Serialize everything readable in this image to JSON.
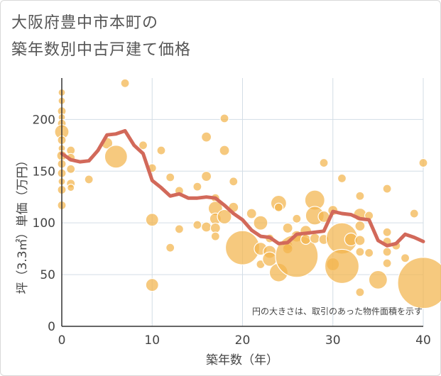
{
  "title_line1": "大阪府豊中市本町の",
  "title_line2": "築年数別中古戸建て価格",
  "colors": {
    "bubble": "#f3b44c",
    "bubble_stroke": "#ffffff",
    "line": "#d2695a",
    "grid": "#d3dde6",
    "axis": "#333333"
  },
  "chart_data": {
    "type": "scatter",
    "title": "大阪府豊中市本町の築年数別中古戸建て価格",
    "xlabel": "築年数（年）",
    "ylabel": "坪（3.3㎡）単価（万円）",
    "xlim": [
      0,
      40
    ],
    "ylim": [
      0,
      240
    ],
    "xticks": [
      0,
      10,
      20,
      30,
      40
    ],
    "yticks": [
      0,
      50,
      100,
      150,
      200
    ],
    "grid": true,
    "annotation": "円の大きさは、取引のあった物件面積を示す",
    "bubbles": [
      {
        "x": 0,
        "y": 226,
        "s": 5
      },
      {
        "x": 0,
        "y": 218,
        "s": 5
      },
      {
        "x": 0,
        "y": 208,
        "s": 6
      },
      {
        "x": 0,
        "y": 202,
        "s": 5
      },
      {
        "x": 0,
        "y": 196,
        "s": 6
      },
      {
        "x": 0,
        "y": 188,
        "s": 10
      },
      {
        "x": 0,
        "y": 180,
        "s": 6
      },
      {
        "x": 0,
        "y": 172,
        "s": 5
      },
      {
        "x": 0,
        "y": 165,
        "s": 7
      },
      {
        "x": 0,
        "y": 157,
        "s": 6
      },
      {
        "x": 0,
        "y": 148,
        "s": 6
      },
      {
        "x": 0,
        "y": 140,
        "s": 5
      },
      {
        "x": 0,
        "y": 132,
        "s": 6
      },
      {
        "x": 0,
        "y": 117,
        "s": 6
      },
      {
        "x": 1,
        "y": 170,
        "s": 6
      },
      {
        "x": 1,
        "y": 163,
        "s": 6
      },
      {
        "x": 1,
        "y": 152,
        "s": 6
      },
      {
        "x": 1,
        "y": 138,
        "s": 6
      },
      {
        "x": 1,
        "y": 134,
        "s": 5
      },
      {
        "x": 3,
        "y": 142,
        "s": 6
      },
      {
        "x": 5,
        "y": 177,
        "s": 8
      },
      {
        "x": 6,
        "y": 164,
        "s": 16
      },
      {
        "x": 7,
        "y": 235,
        "s": 6
      },
      {
        "x": 9,
        "y": 175,
        "s": 6
      },
      {
        "x": 10,
        "y": 153,
        "s": 6
      },
      {
        "x": 10,
        "y": 103,
        "s": 9
      },
      {
        "x": 10,
        "y": 40,
        "s": 9
      },
      {
        "x": 11,
        "y": 170,
        "s": 6
      },
      {
        "x": 12,
        "y": 144,
        "s": 6
      },
      {
        "x": 12,
        "y": 76,
        "s": 6
      },
      {
        "x": 13,
        "y": 131,
        "s": 6
      },
      {
        "x": 13,
        "y": 94,
        "s": 6
      },
      {
        "x": 15,
        "y": 135,
        "s": 6
      },
      {
        "x": 15,
        "y": 98,
        "s": 6
      },
      {
        "x": 16,
        "y": 183,
        "s": 7
      },
      {
        "x": 16,
        "y": 145,
        "s": 7
      },
      {
        "x": 16,
        "y": 96,
        "s": 7
      },
      {
        "x": 17,
        "y": 124,
        "s": 6
      },
      {
        "x": 17,
        "y": 114,
        "s": 10
      },
      {
        "x": 17,
        "y": 104,
        "s": 8
      },
      {
        "x": 17,
        "y": 95,
        "s": 7
      },
      {
        "x": 17,
        "y": 87,
        "s": 6
      },
      {
        "x": 18,
        "y": 201,
        "s": 6
      },
      {
        "x": 18,
        "y": 170,
        "s": 7
      },
      {
        "x": 18,
        "y": 106,
        "s": 10
      },
      {
        "x": 19,
        "y": 140,
        "s": 6
      },
      {
        "x": 19,
        "y": 115,
        "s": 7
      },
      {
        "x": 20,
        "y": 76,
        "s": 24
      },
      {
        "x": 21,
        "y": 109,
        "s": 7
      },
      {
        "x": 22,
        "y": 100,
        "s": 10
      },
      {
        "x": 22,
        "y": 75,
        "s": 9
      },
      {
        "x": 22,
        "y": 60,
        "s": 6
      },
      {
        "x": 23,
        "y": 85,
        "s": 6
      },
      {
        "x": 23,
        "y": 72,
        "s": 9
      },
      {
        "x": 23,
        "y": 65,
        "s": 10
      },
      {
        "x": 24,
        "y": 119,
        "s": 11
      },
      {
        "x": 24,
        "y": 115,
        "s": 6
      },
      {
        "x": 24,
        "y": 52,
        "s": 13
      },
      {
        "x": 25,
        "y": 95,
        "s": 7
      },
      {
        "x": 25,
        "y": 78,
        "s": 7
      },
      {
        "x": 25,
        "y": 75,
        "s": 7
      },
      {
        "x": 26,
        "y": 104,
        "s": 6
      },
      {
        "x": 26,
        "y": 87,
        "s": 8
      },
      {
        "x": 26,
        "y": 68,
        "s": 30
      },
      {
        "x": 27,
        "y": 92,
        "s": 8
      },
      {
        "x": 27,
        "y": 84,
        "s": 7
      },
      {
        "x": 28,
        "y": 122,
        "s": 14
      },
      {
        "x": 28,
        "y": 107,
        "s": 13
      },
      {
        "x": 28,
        "y": 85,
        "s": 7
      },
      {
        "x": 29,
        "y": 158,
        "s": 6
      },
      {
        "x": 29,
        "y": 106,
        "s": 8
      },
      {
        "x": 29,
        "y": 84,
        "s": 7
      },
      {
        "x": 30,
        "y": 112,
        "s": 7
      },
      {
        "x": 30,
        "y": 60,
        "s": 9
      },
      {
        "x": 31,
        "y": 143,
        "s": 6
      },
      {
        "x": 31,
        "y": 85,
        "s": 22
      },
      {
        "x": 31,
        "y": 58,
        "s": 24
      },
      {
        "x": 32,
        "y": 84,
        "s": 9
      },
      {
        "x": 33,
        "y": 126,
        "s": 6
      },
      {
        "x": 33,
        "y": 108,
        "s": 9
      },
      {
        "x": 33,
        "y": 97,
        "s": 7
      },
      {
        "x": 33,
        "y": 83,
        "s": 7
      },
      {
        "x": 33,
        "y": 72,
        "s": 6
      },
      {
        "x": 33,
        "y": 33,
        "s": 6
      },
      {
        "x": 34,
        "y": 107,
        "s": 6
      },
      {
        "x": 34,
        "y": 71,
        "s": 6
      },
      {
        "x": 35,
        "y": 45,
        "s": 13
      },
      {
        "x": 36,
        "y": 133,
        "s": 6
      },
      {
        "x": 36,
        "y": 91,
        "s": 6
      },
      {
        "x": 36,
        "y": 82,
        "s": 6
      },
      {
        "x": 36,
        "y": 72,
        "s": 6
      },
      {
        "x": 36,
        "y": 61,
        "s": 6
      },
      {
        "x": 37,
        "y": 78,
        "s": 6
      },
      {
        "x": 38,
        "y": 66,
        "s": 6
      },
      {
        "x": 39,
        "y": 109,
        "s": 6
      },
      {
        "x": 40,
        "y": 158,
        "s": 6
      },
      {
        "x": 40,
        "y": 42,
        "s": 36
      }
    ],
    "series": [
      {
        "x": [
          0,
          1,
          2,
          3,
          4,
          5,
          6,
          7,
          8,
          9,
          10,
          11,
          12,
          13,
          14,
          15,
          16,
          17,
          18,
          19,
          20,
          21,
          22,
          23,
          24,
          25,
          26,
          27,
          28,
          29,
          30,
          31,
          32,
          33,
          34,
          35,
          36,
          37,
          38,
          39,
          40
        ],
        "y": [
          167,
          161,
          159,
          160,
          170,
          185,
          186,
          189,
          175,
          167,
          141,
          134,
          126,
          128,
          124,
          124,
          125,
          124,
          117,
          109,
          103,
          93,
          87,
          86,
          80,
          81,
          89,
          90,
          91,
          92,
          111,
          109,
          108,
          104,
          103,
          83,
          78,
          80,
          89,
          86,
          82
        ]
      }
    ]
  }
}
